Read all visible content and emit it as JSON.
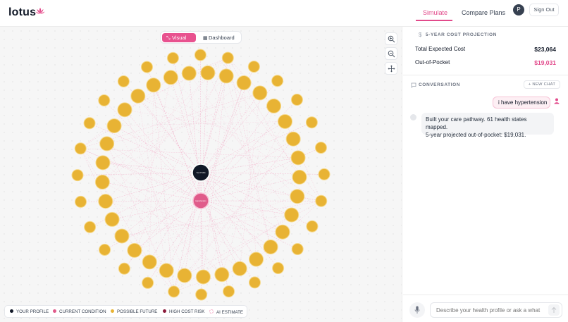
{
  "app": {
    "name": "lotus"
  },
  "nav": {
    "tabs": [
      {
        "label": "Simulate",
        "active": true
      },
      {
        "label": "Compare Plans",
        "active": false
      }
    ]
  },
  "user": {
    "avatar_initial": "P",
    "signout_label": "Sign Out"
  },
  "view_toggle": {
    "visual_label": "Visual",
    "dashboard_label": "Dashboard",
    "active": "Visual"
  },
  "graph": {
    "center_profile_label": "Your Profile",
    "condition_label": "Hypertension",
    "colors": {
      "profile": "#111827",
      "condition": "#e05a8a",
      "future": "#e8b334",
      "high_cost": "#8b1a3b",
      "edge": "#f3a6c4"
    }
  },
  "legend": [
    {
      "label": "YOUR PROFILE",
      "color": "#111827"
    },
    {
      "label": "CURRENT CONDITION",
      "color": "#e05a8a"
    },
    {
      "label": "POSSIBLE FUTURE",
      "color": "#e8b334"
    },
    {
      "label": "HIGH COST RISK",
      "color": "#8b1a3b"
    },
    {
      "label": "AI ESTIMATE",
      "color": "#f3a6c4"
    }
  ],
  "projection": {
    "title": "5-YEAR COST PROJECTION",
    "rows": [
      {
        "label": "Total Expected Cost",
        "value": "$23,064",
        "color": "#111827"
      },
      {
        "label": "Out-of-Pocket",
        "value": "$19,031",
        "color": "#e24a8b"
      }
    ]
  },
  "conversation": {
    "title": "CONVERSATION",
    "new_chat_label": "+ NEW CHAT",
    "messages": [
      {
        "role": "user",
        "text": "i have hypertension"
      },
      {
        "role": "assistant",
        "line1": "Built your care pathway. 61 health states mapped.",
        "line2": "5-year projected out-of-pocket: $19,031."
      }
    ],
    "input_placeholder": "Describe your health profile or ask a what"
  }
}
